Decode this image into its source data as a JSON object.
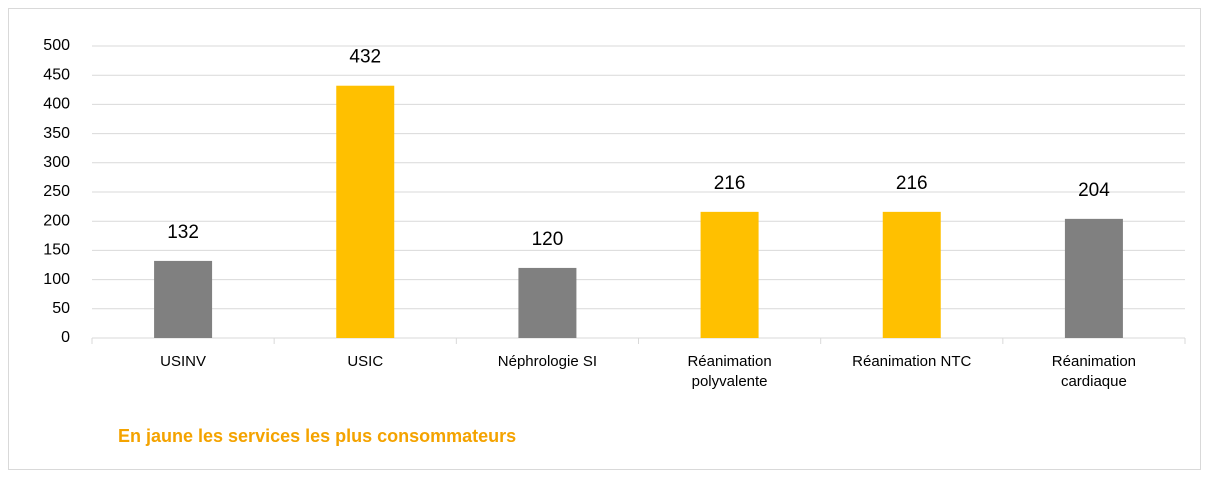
{
  "chart_data": {
    "type": "bar",
    "categories": [
      "USINV",
      "USIC",
      "Néphrologie SI",
      "Réanimation polyvalente",
      "Réanimation NTC",
      "Réanimation cardiaque"
    ],
    "values": [
      132,
      432,
      120,
      216,
      216,
      204
    ],
    "colors": [
      "#808080",
      "#ffc000",
      "#808080",
      "#ffc000",
      "#ffc000",
      "#808080"
    ],
    "ylim": [
      0,
      500
    ],
    "yticks": [
      0,
      50,
      100,
      150,
      200,
      250,
      300,
      350,
      400,
      450,
      500
    ],
    "grid": true,
    "annotation": "En jaune les services les plus consommateurs",
    "annotation_color": "#f4a300"
  }
}
